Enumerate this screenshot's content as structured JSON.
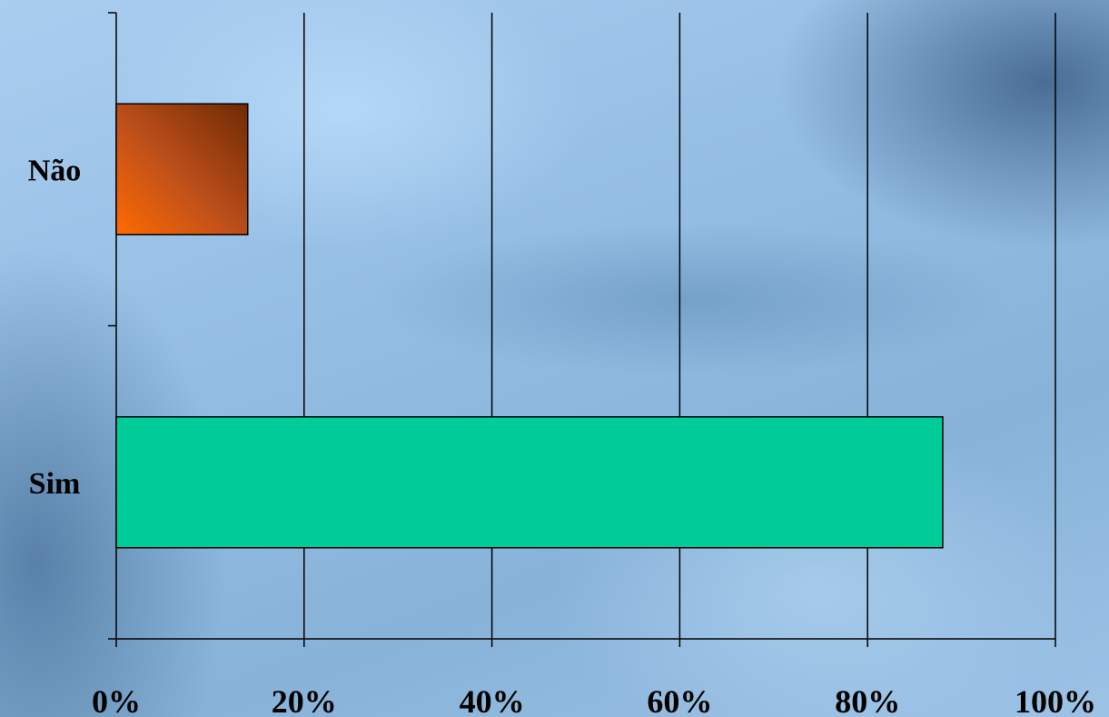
{
  "chart_data": {
    "type": "bar",
    "orientation": "horizontal",
    "categories": [
      "Não",
      "Sim"
    ],
    "values": [
      14,
      88
    ],
    "bar_colors": [
      "#c8501a",
      "#00cc99"
    ],
    "xlim": [
      0,
      100
    ],
    "x_ticks": [
      "0%",
      "20%",
      "40%",
      "60%",
      "80%",
      "100%"
    ],
    "grid": "vertical",
    "legend": "none"
  }
}
